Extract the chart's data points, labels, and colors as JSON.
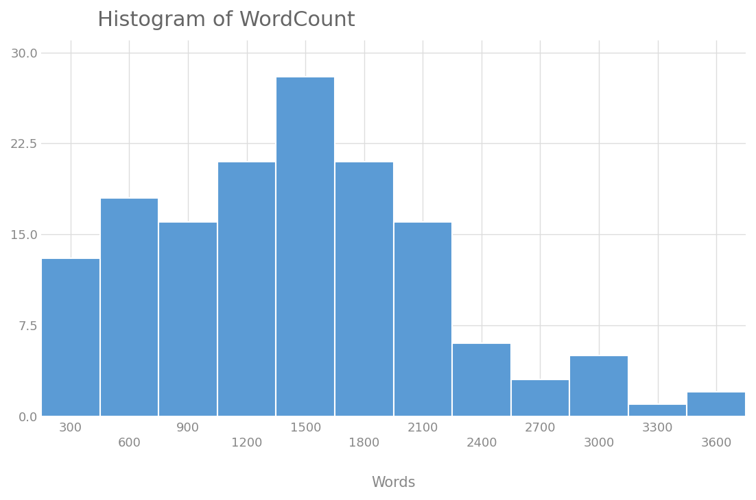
{
  "title": "Histogram of WordCount",
  "xlabel": "Words",
  "ylabel": "",
  "bar_color": "#5B9BD5",
  "bin_edges": [
    150,
    450,
    750,
    1050,
    1350,
    1650,
    1950,
    2250,
    2550,
    2850,
    3150,
    3450,
    3750
  ],
  "bar_heights": [
    13,
    18,
    16,
    21,
    28,
    21,
    16,
    6,
    3,
    5,
    1,
    2
  ],
  "yticks": [
    0,
    7.5,
    15,
    22.5,
    30
  ],
  "xticks_top": [
    300,
    900,
    1500,
    2100,
    2700,
    3300
  ],
  "xticks_bottom": [
    600,
    1200,
    1800,
    2400,
    3000,
    3600
  ],
  "xlim": [
    150,
    3750
  ],
  "ylim": [
    0,
    31
  ],
  "background_color": "#FFFFFF",
  "grid_color": "#DDDDDD",
  "title_fontsize": 22,
  "axis_label_fontsize": 15,
  "tick_fontsize": 13,
  "tick_color": "#888888",
  "title_color": "#666666"
}
